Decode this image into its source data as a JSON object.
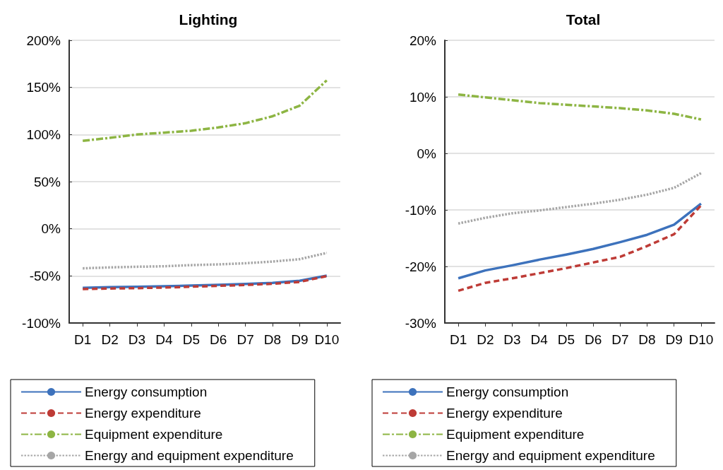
{
  "chart_data": [
    {
      "type": "line",
      "title": "Lighting",
      "categories": [
        "D1",
        "D2",
        "D3",
        "D4",
        "D5",
        "D6",
        "D7",
        "D8",
        "D9",
        "D10"
      ],
      "series": [
        {
          "name": "Energy consumption",
          "color": "#3d72bc",
          "line_style": "solid",
          "values": [
            -62.7,
            -62,
            -61.5,
            -61,
            -60.3,
            -59.5,
            -58.6,
            -57.5,
            -55.2,
            -49.8
          ]
        },
        {
          "name": "Energy expenditure",
          "color": "#be3b36",
          "line_style": "dashed",
          "values": [
            -64,
            -63.4,
            -63,
            -62.4,
            -61.5,
            -60.6,
            -59.6,
            -58.4,
            -56.4,
            -50.2
          ]
        },
        {
          "name": "Equipment expenditure",
          "color": "#8db543",
          "line_style": "dashdot",
          "values": [
            93.3,
            96.5,
            100,
            102,
            104,
            107.5,
            112,
            119.4,
            130.6,
            157.5
          ]
        },
        {
          "name": "Energy and equipment expenditure",
          "color": "#a6a6a6",
          "line_style": "dotted",
          "values": [
            -42,
            -41,
            -40.3,
            -39.8,
            -38.6,
            -37.8,
            -36.6,
            -34.8,
            -32.3,
            -25.6
          ]
        }
      ],
      "ylim": [
        -100,
        200
      ],
      "yticks": [
        {
          "value": -100,
          "label": "-100%"
        },
        {
          "value": -50,
          "label": "-50%"
        },
        {
          "value": 0,
          "label": "0%"
        },
        {
          "value": 50,
          "label": "50%"
        },
        {
          "value": 100,
          "label": "100%"
        },
        {
          "value": 150,
          "label": "150%"
        },
        {
          "value": 200,
          "label": "200%"
        }
      ],
      "grid": "y",
      "legend": "bottom",
      "marker": "none"
    },
    {
      "type": "line",
      "title": "Total",
      "categories": [
        "D1",
        "D2",
        "D3",
        "D4",
        "D5",
        "D6",
        "D7",
        "D8",
        "D9",
        "D10"
      ],
      "series": [
        {
          "name": "Energy consumption",
          "color": "#3d72bc",
          "line_style": "solid",
          "values": [
            -22.1,
            -20.7,
            -19.8,
            -18.8,
            -17.9,
            -16.9,
            -15.7,
            -14.4,
            -12.6,
            -8.9
          ]
        },
        {
          "name": "Energy expenditure",
          "color": "#be3b36",
          "line_style": "dashed",
          "values": [
            -24.3,
            -22.9,
            -22.1,
            -21.2,
            -20.3,
            -19.3,
            -18.3,
            -16.4,
            -14.3,
            -9.2
          ]
        },
        {
          "name": "Equipment expenditure",
          "color": "#8db543",
          "line_style": "dashdot",
          "values": [
            10.4,
            9.9,
            9.4,
            8.9,
            8.6,
            8.3,
            8.0,
            7.6,
            7.0,
            6.0
          ]
        },
        {
          "name": "Energy and equipment expenditure",
          "color": "#a6a6a6",
          "line_style": "dotted",
          "values": [
            -12.4,
            -11.4,
            -10.6,
            -10.1,
            -9.5,
            -8.9,
            -8.2,
            -7.3,
            -6.1,
            -3.5
          ]
        }
      ],
      "ylim": [
        -30,
        20
      ],
      "yticks": [
        {
          "value": -30,
          "label": "-30%"
        },
        {
          "value": -20,
          "label": "-20%"
        },
        {
          "value": -10,
          "label": "-10%"
        },
        {
          "value": 0,
          "label": "0%"
        },
        {
          "value": 10,
          "label": "10%"
        },
        {
          "value": 20,
          "label": "20%"
        }
      ],
      "grid": "y",
      "legend": "bottom",
      "marker": "none"
    }
  ]
}
